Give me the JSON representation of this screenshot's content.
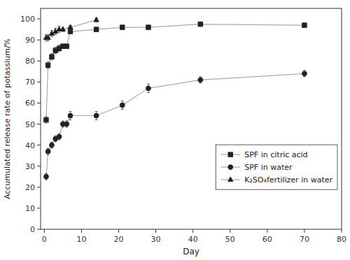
{
  "chart_data": {
    "type": "line",
    "xlabel": "Day",
    "ylabel": "Accumulated release rate of potassium/%",
    "xlim": [
      -1,
      80
    ],
    "ylim": [
      0,
      105
    ],
    "xticks": [
      0,
      10,
      20,
      30,
      40,
      50,
      60,
      70,
      80
    ],
    "yticks": [
      0,
      10,
      20,
      30,
      40,
      50,
      60,
      70,
      80,
      90,
      100
    ],
    "grid": false,
    "legend": "lower right",
    "color": "#aaaaaa",
    "series": [
      {
        "name": "SPF in citric acid",
        "marker": "square",
        "color": "#222222",
        "x": [
          0.5,
          1,
          2,
          3,
          4,
          5,
          6,
          7,
          14,
          21,
          28,
          42,
          70
        ],
        "values": [
          52,
          78,
          82,
          85,
          86,
          87,
          87,
          94,
          95,
          96,
          96,
          97.5,
          97
        ],
        "errors": [
          1.5,
          1.5,
          1.5,
          1.5,
          1.5,
          1.0,
          1.0,
          1.0,
          1.0,
          1.0,
          1.0,
          1.0,
          1.0
        ]
      },
      {
        "name": "SPF in water",
        "marker": "circle",
        "color": "#222222",
        "x": [
          0.5,
          1,
          2,
          3,
          4,
          5,
          6,
          7,
          14,
          21,
          28,
          42,
          70
        ],
        "values": [
          25,
          37,
          40,
          43,
          44,
          50,
          50,
          54,
          54,
          59,
          67,
          71,
          74
        ],
        "errors": [
          1.5,
          1.5,
          1.5,
          1.5,
          1.5,
          1.5,
          1.5,
          2.0,
          2.0,
          2.0,
          2.0,
          1.5,
          1.5
        ]
      },
      {
        "name": "K₂SO₄fertilizer in water",
        "marker": "triangle",
        "color": "#222222",
        "x": [
          0.5,
          1,
          2,
          3,
          4,
          5,
          7,
          14
        ],
        "values": [
          91,
          91,
          93,
          94,
          95,
          95,
          96,
          99.5
        ],
        "errors": [
          1.5,
          1.5,
          1.5,
          1.5,
          1.5,
          1.0,
          1.0,
          1.0
        ]
      }
    ]
  }
}
